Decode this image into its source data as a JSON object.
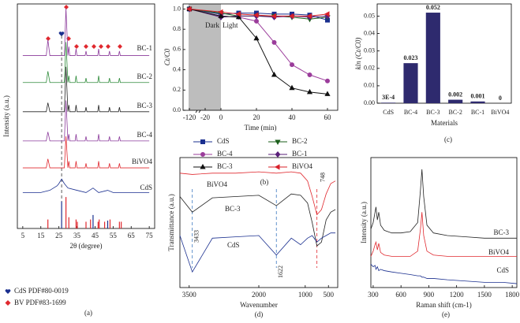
{
  "chart_data": [
    {
      "type": "line",
      "panel_label": "(a)",
      "x_label": "2θ (degree)",
      "y_label": "Intensity (a.u.)",
      "xlim": [
        2,
        78
      ],
      "xticks": [
        5,
        15,
        25,
        35,
        45,
        55,
        65,
        75
      ],
      "ylim": [
        0,
        100
      ],
      "dashed_line_x": 26.5,
      "series": [
        {
          "name": "BC-1",
          "color": "#8b3a9b",
          "x": [
            5,
            18,
            18.9,
            20,
            28,
            28.9,
            30,
            30.5,
            31,
            34,
            34.5,
            35,
            39.5,
            40,
            40.5,
            46.5,
            47,
            47.5,
            52.5,
            53,
            53.5,
            58,
            58.5,
            59,
            75
          ],
          "values": [
            77,
            77,
            84,
            77,
            77,
            98,
            77,
            81,
            77,
            77,
            80,
            77,
            77,
            79,
            77,
            77,
            80,
            77,
            77,
            79,
            77,
            77,
            79,
            77,
            77
          ]
        },
        {
          "name": "BC-2",
          "color": "#2e8b3a",
          "x": [
            5,
            18,
            18.9,
            20,
            28,
            28.9,
            30,
            30.5,
            31,
            34,
            34.5,
            35,
            39.5,
            40,
            40.5,
            46.5,
            47,
            47.5,
            52.5,
            53,
            53.5,
            58,
            58.5,
            59,
            75
          ],
          "values": [
            65,
            65,
            70,
            65,
            65,
            83,
            65,
            68,
            65,
            65,
            68,
            65,
            65,
            67,
            65,
            65,
            68,
            65,
            65,
            67,
            65,
            65,
            67,
            65,
            65
          ]
        },
        {
          "name": "BC-3",
          "color": "#222222",
          "x": [
            5,
            18,
            18.9,
            20,
            28,
            28.9,
            30,
            30.5,
            31,
            34,
            34.5,
            35,
            39.5,
            40,
            40.5,
            46.5,
            47,
            47.5,
            52.5,
            53,
            53.5,
            58,
            58.5,
            59,
            75
          ],
          "values": [
            52,
            52,
            56,
            52,
            52,
            72,
            52,
            55,
            52,
            52,
            55,
            52,
            52,
            54,
            52,
            52,
            55,
            52,
            52,
            54,
            52,
            52,
            54,
            52,
            52
          ]
        },
        {
          "name": "BC-4",
          "color": "#8b3a9b",
          "x": [
            5,
            18,
            18.9,
            20,
            28,
            28.9,
            30,
            30.5,
            31,
            34,
            34.5,
            35,
            39.5,
            40,
            40.5,
            46.5,
            47,
            47.5,
            52.5,
            53,
            53.5,
            58,
            58.5,
            59,
            75
          ],
          "values": [
            39,
            39,
            43,
            39,
            39,
            57,
            39,
            42,
            39,
            39,
            42,
            39,
            39,
            41,
            39,
            39,
            42,
            39,
            39,
            41,
            39,
            39,
            41,
            39,
            39
          ]
        },
        {
          "name": "BiVO4",
          "color": "#e0282e",
          "x": [
            5,
            18,
            18.9,
            20,
            28,
            28.9,
            30,
            30.5,
            31,
            34,
            34.5,
            35,
            39.5,
            40,
            40.5,
            46.5,
            47,
            47.5,
            52.5,
            53,
            53.5,
            58,
            58.5,
            59,
            75
          ],
          "values": [
            27,
            27,
            31,
            27,
            27,
            41,
            27,
            30,
            27,
            27,
            30,
            27,
            27,
            29,
            27,
            27,
            30,
            27,
            27,
            29,
            27,
            27,
            29,
            27,
            27
          ]
        },
        {
          "name": "CdS",
          "color": "#1a2f8f",
          "x": [
            5,
            15,
            20,
            24,
            25,
            26.5,
            28,
            30,
            35,
            40,
            43.9,
            47,
            52,
            55,
            65,
            75
          ],
          "values": [
            16,
            16,
            17,
            19,
            20,
            22,
            20,
            18,
            17,
            16,
            18,
            16,
            17,
            16,
            16,
            16
          ]
        }
      ],
      "reference_patterns": [
        {
          "name": "CdS PDF#80-0019",
          "color": "#1a2f8f",
          "positions": [
            26.5,
            43.9,
            52
          ],
          "heights": [
            12,
            6,
            3.5
          ]
        },
        {
          "name": "BV PDF#83-1699",
          "color": "#e0282e",
          "positions": [
            18.9,
            28.9,
            30.5,
            34.5,
            35.2,
            40,
            42.5,
            46.7,
            47.3,
            50.3,
            53.3,
            58.5,
            59.5
          ],
          "heights": [
            4,
            14,
            5,
            4,
            3,
            3,
            4,
            3,
            4,
            3,
            4,
            3,
            3
          ]
        }
      ]
    },
    {
      "type": "line",
      "panel_label": "(b)",
      "x_label": "Time (min)",
      "y_label": "Ct/C0",
      "xlim": [
        -125,
        62
      ],
      "xticks": [
        -120,
        -20,
        0,
        20,
        40,
        60
      ],
      "ylim": [
        0,
        1.05
      ],
      "yticks": [
        {
          "value": 0,
          "label": "0.0"
        },
        {
          "value": 0.2,
          "label": "0.2"
        },
        {
          "value": 0.4,
          "label": "0.4"
        },
        {
          "value": 0.6,
          "label": "0.6"
        },
        {
          "value": 0.8,
          "label": "0.8"
        },
        {
          "value": 1,
          "label": "1.0"
        }
      ],
      "shaded_region": {
        "x": [
          -125,
          0
        ],
        "label_left": "Dark",
        "label_right": "Light"
      },
      "series": [
        {
          "name": "CdS",
          "color": "#1a2f8f",
          "marker": "square",
          "x": [
            -120,
            0,
            10,
            20,
            30,
            40,
            50,
            60
          ],
          "values": [
            1.0,
            0.95,
            0.96,
            0.96,
            0.95,
            0.95,
            0.94,
            0.89
          ]
        },
        {
          "name": "BC-2",
          "color": "#1a5e1a",
          "marker": "triangle-down",
          "x": [
            -120,
            0,
            10,
            20,
            30,
            40,
            50,
            60
          ],
          "values": [
            1.0,
            0.96,
            0.93,
            0.93,
            0.93,
            0.92,
            0.9,
            0.92
          ]
        },
        {
          "name": "BC-4",
          "color": "#9b3c9b",
          "marker": "circle",
          "x": [
            -120,
            0,
            10,
            20,
            30,
            40,
            50,
            60
          ],
          "values": [
            1.0,
            0.93,
            0.92,
            0.88,
            0.67,
            0.45,
            0.35,
            0.29
          ]
        },
        {
          "name": "BC-1",
          "color": "#5a1f7a",
          "marker": "diamond",
          "x": [
            -120,
            0,
            10,
            20,
            30,
            40,
            50,
            60
          ],
          "values": [
            1.0,
            0.92,
            0.93,
            0.93,
            0.92,
            0.93,
            0.92,
            0.93
          ]
        },
        {
          "name": "BC-3",
          "color": "#111111",
          "marker": "triangle",
          "x": [
            -120,
            0,
            10,
            20,
            30,
            40,
            50,
            60
          ],
          "values": [
            1.0,
            0.93,
            0.92,
            0.71,
            0.35,
            0.22,
            0.18,
            0.16
          ]
        },
        {
          "name": "BiVO4",
          "color": "#d8202a",
          "marker": "triangle-left",
          "x": [
            -120,
            0,
            10,
            20,
            30,
            40,
            50,
            60
          ],
          "values": [
            1.0,
            0.97,
            0.95,
            0.94,
            0.93,
            0.93,
            0.93,
            0.95
          ]
        }
      ]
    },
    {
      "type": "bar",
      "panel_label": "(c)",
      "x_label": "Materials",
      "y_label": "kln (Ct/C0)",
      "color": "#2e2a6e",
      "categories": [
        "CdS",
        "BC-4",
        "BC-3",
        "BC-2",
        "BC-1",
        "BiVO4"
      ],
      "values": [
        0.0003,
        0.023,
        0.052,
        0.002,
        0.001,
        0
      ],
      "value_labels": [
        "3E-4",
        "0.023",
        "0.052",
        "0.002",
        "0.001",
        "0"
      ],
      "ylim": [
        0,
        0.057
      ],
      "yticks": [
        {
          "value": 0,
          "label": "0.00"
        },
        {
          "value": 0.01,
          "label": "0.01"
        },
        {
          "value": 0.02,
          "label": "0.02"
        },
        {
          "value": 0.03,
          "label": "0.03"
        },
        {
          "value": 0.04,
          "label": "0.04"
        },
        {
          "value": 0.05,
          "label": "0.05"
        }
      ]
    },
    {
      "type": "line",
      "panel_label": "(d)",
      "x_label": "Wavenumber",
      "y_label": "Transmittance (a.u.)",
      "xlim": [
        3700,
        300
      ],
      "xticks": [
        3500,
        2000,
        1000,
        500
      ],
      "ylim": [
        0,
        100
      ],
      "annotations": [
        {
          "x": 3433,
          "label": "3433"
        },
        {
          "x": 1622,
          "label": "1622"
        },
        {
          "x": 748,
          "label": "748"
        }
      ],
      "series": [
        {
          "name": "BiVO4",
          "color": "#e0282e",
          "x": [
            3700,
            3433,
            3000,
            2500,
            2000,
            1622,
            1300,
            1100,
            950,
            850,
            748,
            650,
            550,
            450,
            350
          ],
          "values": [
            88,
            87,
            88,
            88,
            89,
            88,
            89,
            88,
            82,
            70,
            56,
            60,
            72,
            80,
            82
          ]
        },
        {
          "name": "BC-3",
          "color": "#222222",
          "x": [
            3700,
            3433,
            3000,
            2500,
            2000,
            1622,
            1300,
            1100,
            950,
            850,
            748,
            650,
            550,
            450,
            350
          ],
          "values": [
            70,
            58,
            69,
            70,
            71,
            63,
            72,
            71,
            65,
            50,
            32,
            35,
            52,
            58,
            60
          ]
        },
        {
          "name": "CdS",
          "color": "#1a2f8f",
          "x": [
            3700,
            3433,
            3000,
            2500,
            2000,
            1622,
            1300,
            1100,
            950,
            850,
            748,
            650,
            550,
            450,
            350
          ],
          "values": [
            40,
            12,
            38,
            39,
            40,
            25,
            38,
            33,
            38,
            40,
            35,
            38,
            40,
            42,
            42
          ]
        }
      ]
    },
    {
      "type": "line",
      "panel_label": "(e)",
      "x_label": "Raman shift (cm-1)",
      "y_label": "Intensity (a.u.)",
      "xlim": [
        275,
        1850
      ],
      "xticks": [
        300,
        600,
        900,
        1200,
        1500,
        1800
      ],
      "ylim": [
        0,
        100
      ],
      "series": [
        {
          "name": "BC-3",
          "color": "#222222",
          "x": [
            275,
            300,
            320,
            330,
            345,
            360,
            380,
            420,
            500,
            600,
            700,
            780,
            810,
            826,
            845,
            880,
            950,
            1100,
            1300,
            1500,
            1700,
            1850
          ],
          "values": [
            45,
            50,
            58,
            62,
            52,
            58,
            48,
            44,
            42,
            42,
            43,
            50,
            75,
            91,
            70,
            48,
            42,
            40,
            39,
            38,
            38,
            38
          ]
        },
        {
          "name": "BiVO4",
          "color": "#e0282e",
          "x": [
            275,
            300,
            320,
            330,
            345,
            360,
            380,
            420,
            500,
            600,
            700,
            780,
            810,
            826,
            845,
            880,
            950,
            1100,
            1300,
            1500,
            1700,
            1850
          ],
          "values": [
            24,
            28,
            33,
            35,
            29,
            34,
            27,
            25,
            24,
            24,
            24,
            28,
            45,
            58,
            40,
            28,
            25,
            24,
            24,
            24,
            24,
            24
          ]
        },
        {
          "name": "CdS",
          "color": "#1a2f8f",
          "x": [
            275,
            300,
            320,
            330,
            345,
            360,
            380,
            420,
            500,
            600,
            700,
            780,
            810,
            826,
            845,
            880,
            950,
            1100,
            1300,
            1500,
            1700,
            1850
          ],
          "values": [
            18,
            16,
            17,
            14,
            16,
            13,
            14,
            13,
            12,
            11,
            10,
            9,
            9,
            8,
            8,
            7,
            7,
            6,
            5,
            4,
            4,
            3
          ]
        }
      ]
    }
  ]
}
